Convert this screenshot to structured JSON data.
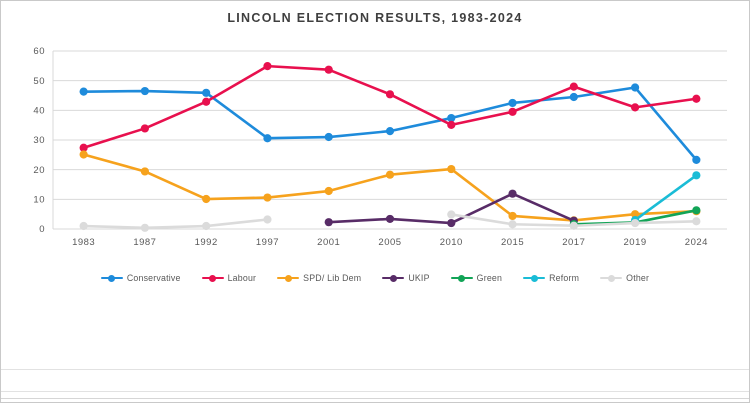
{
  "window": {
    "background": "#ffffff",
    "border_color": "#c9c9c9"
  },
  "sheet": {
    "gridline_color": "#e2e2e2",
    "gridline_rows_y": [
      368,
      390,
      397
    ]
  },
  "chart_data": {
    "type": "line",
    "title": "LINCOLN ELECTION RESULTS, 1983-2024",
    "title_color": "#3f3f3f",
    "categories": [
      "1983",
      "1987",
      "1992",
      "1997",
      "2001",
      "2005",
      "2010",
      "2015",
      "2017",
      "2019",
      "2024"
    ],
    "series": [
      {
        "name": "Conservative",
        "color": "#1e8bdb",
        "values": [
          46.3,
          46.5,
          45.9,
          30.6,
          31.0,
          33.0,
          37.4,
          42.5,
          44.5,
          47.7,
          23.3
        ]
      },
      {
        "name": "Labour",
        "color": "#e8104e",
        "values": [
          27.4,
          33.9,
          42.9,
          54.9,
          53.7,
          45.4,
          35.1,
          39.5,
          48.0,
          41.0,
          43.9
        ]
      },
      {
        "name": "SPD/ Lib Dem",
        "color": "#f6a21d",
        "values": [
          25.1,
          19.4,
          10.1,
          10.6,
          12.8,
          18.3,
          20.2,
          4.4,
          2.9,
          5.0,
          6.0
        ]
      },
      {
        "name": "UKIP",
        "color": "#582c67",
        "values": [
          null,
          null,
          null,
          null,
          2.3,
          3.4,
          2.0,
          11.9,
          2.8,
          null,
          null
        ]
      },
      {
        "name": "Green",
        "color": "#12a457",
        "values": [
          null,
          null,
          null,
          null,
          null,
          null,
          null,
          null,
          1.6,
          2.2,
          6.3
        ]
      },
      {
        "name": "Reform",
        "color": "#1abcd6",
        "values": [
          null,
          null,
          null,
          null,
          null,
          null,
          null,
          null,
          null,
          3.0,
          18.1
        ]
      },
      {
        "name": "Other",
        "color": "#dbdbdb",
        "values": [
          1.0,
          0.4,
          1.0,
          3.2,
          null,
          null,
          4.9,
          1.6,
          1.1,
          2.0,
          2.6
        ]
      }
    ],
    "ylim": [
      0,
      60
    ],
    "yticks": [
      0,
      10,
      20,
      30,
      40,
      50,
      60
    ],
    "xlabel": "",
    "ylabel": "",
    "grid": true,
    "gridline_color": "#d9d9d9",
    "axis_text_color": "#595959",
    "legend_position": "bottom",
    "marker": "circle"
  }
}
